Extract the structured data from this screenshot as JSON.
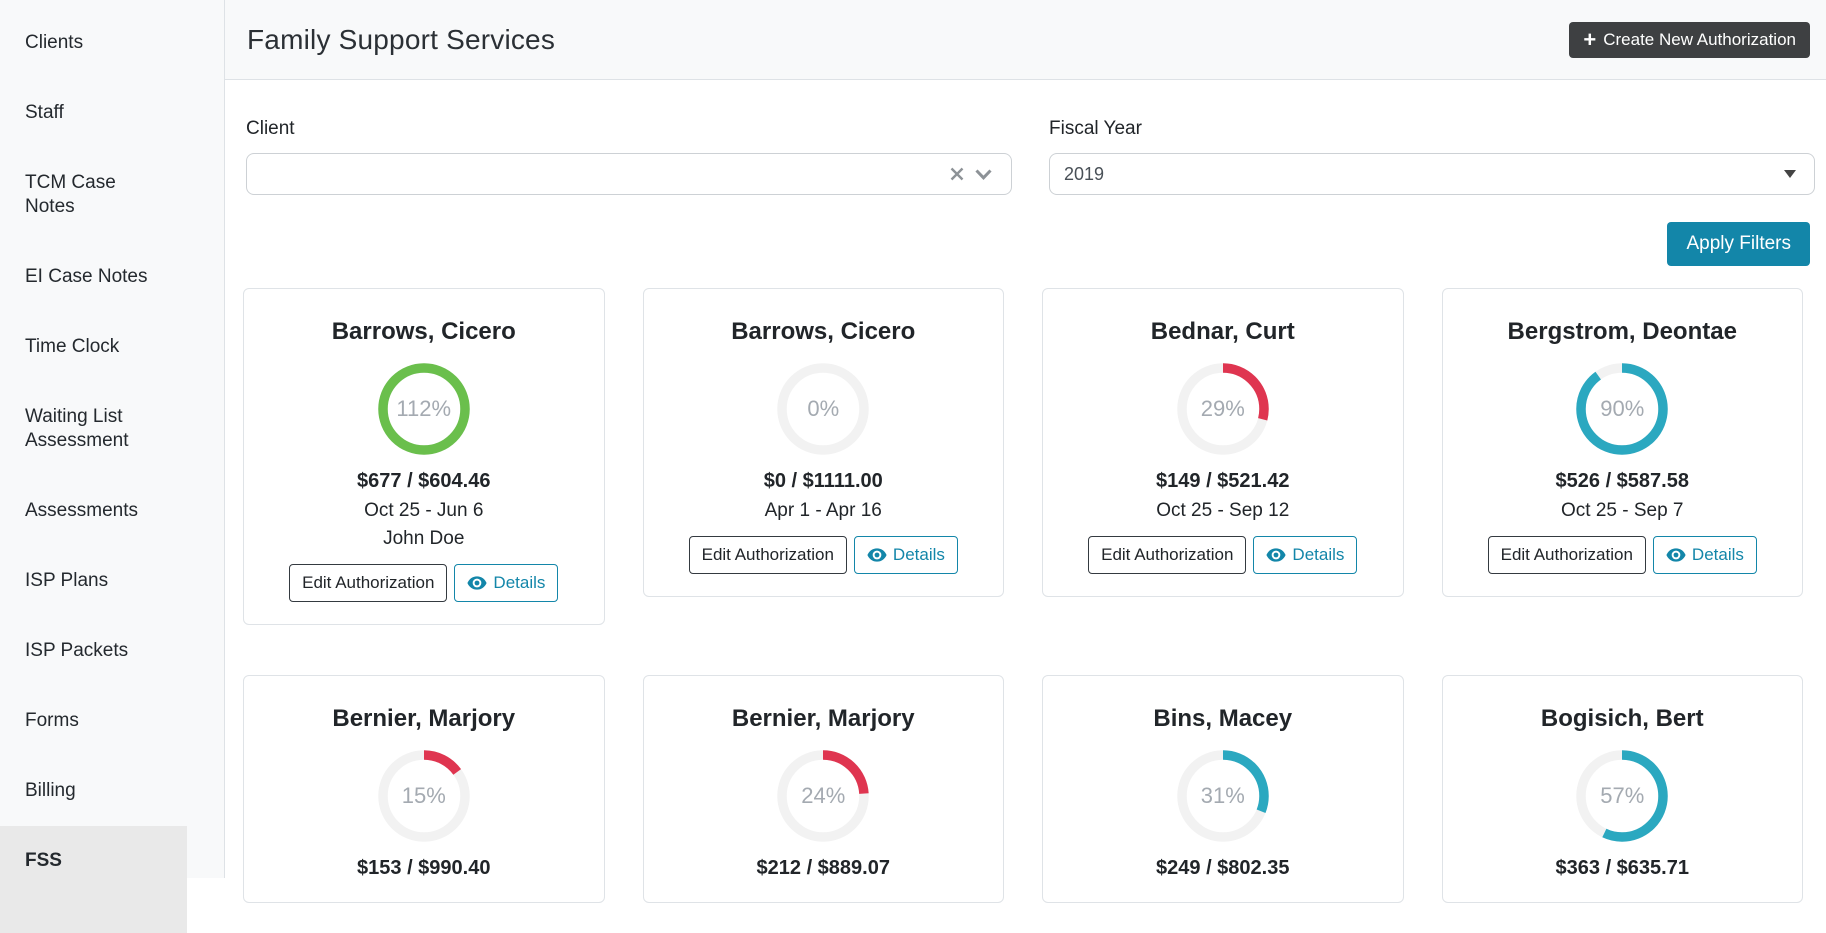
{
  "sidebar": {
    "items": [
      {
        "label": "Clients",
        "active": false
      },
      {
        "label": "Staff",
        "active": false
      },
      {
        "label": "TCM Case Notes",
        "active": false
      },
      {
        "label": "EI Case Notes",
        "active": false
      },
      {
        "label": "Time Clock",
        "active": false
      },
      {
        "label": "Waiting List Assessment",
        "active": false
      },
      {
        "label": "Assessments",
        "active": false
      },
      {
        "label": "ISP Plans",
        "active": false
      },
      {
        "label": "ISP Packets",
        "active": false
      },
      {
        "label": "Forms",
        "active": false
      },
      {
        "label": "Billing",
        "active": false
      },
      {
        "label": "FSS",
        "active": true
      }
    ]
  },
  "header": {
    "title": "Family Support Services",
    "create_button_label": "Create New Authorization",
    "plus_glyph": "+"
  },
  "filters": {
    "client_label": "Client",
    "client_value": "",
    "fiscal_year_label": "Fiscal Year",
    "fiscal_year_value": "2019",
    "apply_button_label": "Apply Filters"
  },
  "card_actions": {
    "edit_label": "Edit Authorization",
    "details_label": "Details"
  },
  "colors": {
    "teal_accent": "#1386a9",
    "dark_button": "#3e4042",
    "ring_green": "#6abf4c",
    "ring_red": "#df3550",
    "ring_teal": "#2ba8c0",
    "ring_track": "#f2f2f2",
    "active_item_bg": "#e9e9e9"
  },
  "chart_data": {
    "type": "donut-progress-cards",
    "note": "each card shows spent vs authorized budget as ring percent",
    "cards": [
      {
        "name": "Barrows, Cicero",
        "percent": 112,
        "percent_label": "112%",
        "amount": "$677 / $604.46",
        "dates": "Oct 25 - Jun 6",
        "staff": "John Doe",
        "ring": "ring_green"
      },
      {
        "name": "Barrows, Cicero",
        "percent": 0,
        "percent_label": "0%",
        "amount": "$0 / $1111.00",
        "dates": "Apr 1 - Apr 16",
        "ring": "ring_track"
      },
      {
        "name": "Bednar, Curt",
        "percent": 29,
        "percent_label": "29%",
        "amount": "$149 / $521.42",
        "dates": "Oct 25 - Sep 12",
        "ring": "ring_red"
      },
      {
        "name": "Bergstrom, Deontae",
        "percent": 90,
        "percent_label": "90%",
        "amount": "$526 / $587.58",
        "dates": "Oct 25 - Sep 7",
        "ring": "ring_teal"
      },
      {
        "name": "Bernier, Marjory",
        "percent": 15,
        "percent_label": "15%",
        "amount": "$153 / $990.40",
        "ring": "ring_red"
      },
      {
        "name": "Bernier, Marjory",
        "percent": 24,
        "percent_label": "24%",
        "amount": "$212 / $889.07",
        "ring": "ring_red"
      },
      {
        "name": "Bins, Macey",
        "percent": 31,
        "percent_label": "31%",
        "amount": "$249 / $802.35",
        "ring": "ring_teal"
      },
      {
        "name": "Bogisich, Bert",
        "percent": 57,
        "percent_label": "57%",
        "amount": "$363 / $635.71",
        "ring": "ring_teal"
      }
    ]
  }
}
